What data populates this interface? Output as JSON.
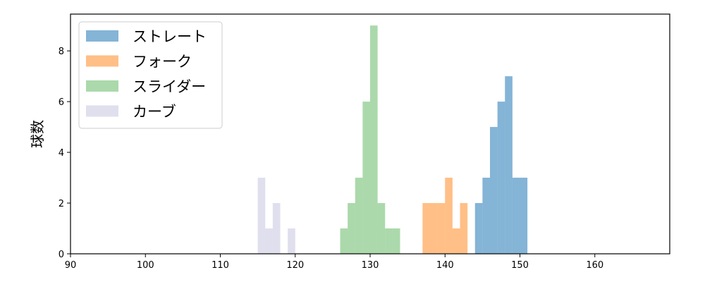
{
  "chart_data": {
    "type": "histogram",
    "xlabel": "",
    "ylabel": "球数",
    "xlim": [
      90,
      170
    ],
    "ylim": [
      0,
      9.45
    ],
    "xticks": [
      90,
      100,
      110,
      120,
      130,
      140,
      150,
      160
    ],
    "yticks": [
      0,
      2,
      4,
      6,
      8
    ],
    "legend_position": "upper-left",
    "grid": false,
    "series": [
      {
        "name": "ストレート",
        "color": "#1f77b4",
        "opacity": 0.55,
        "bins": [
          {
            "x0": 144.0,
            "x1": 145.0,
            "count": 2
          },
          {
            "x0": 145.0,
            "x1": 146.0,
            "count": 3
          },
          {
            "x0": 146.0,
            "x1": 147.0,
            "count": 5
          },
          {
            "x0": 147.0,
            "x1": 148.0,
            "count": 6
          },
          {
            "x0": 148.0,
            "x1": 149.0,
            "count": 7
          },
          {
            "x0": 149.0,
            "x1": 150.0,
            "count": 3
          },
          {
            "x0": 150.0,
            "x1": 151.0,
            "count": 3
          }
        ]
      },
      {
        "name": "フォーク",
        "color": "#ff7f0e",
        "opacity": 0.5,
        "bins": [
          {
            "x0": 137.0,
            "x1": 138.0,
            "count": 2
          },
          {
            "x0": 138.0,
            "x1": 139.0,
            "count": 2
          },
          {
            "x0": 139.0,
            "x1": 140.0,
            "count": 2
          },
          {
            "x0": 140.0,
            "x1": 141.0,
            "count": 3
          },
          {
            "x0": 141.0,
            "x1": 142.0,
            "count": 1
          },
          {
            "x0": 142.0,
            "x1": 143.0,
            "count": 2
          }
        ]
      },
      {
        "name": "スライダー",
        "color": "#2ca02c",
        "opacity": 0.4,
        "bins": [
          {
            "x0": 126.0,
            "x1": 127.0,
            "count": 1
          },
          {
            "x0": 127.0,
            "x1": 128.0,
            "count": 2
          },
          {
            "x0": 128.0,
            "x1": 129.0,
            "count": 3
          },
          {
            "x0": 129.0,
            "x1": 130.0,
            "count": 6
          },
          {
            "x0": 130.0,
            "x1": 131.0,
            "count": 9
          },
          {
            "x0": 131.0,
            "x1": 132.0,
            "count": 2
          },
          {
            "x0": 132.0,
            "x1": 133.0,
            "count": 1
          },
          {
            "x0": 133.0,
            "x1": 134.0,
            "count": 1
          }
        ]
      },
      {
        "name": "カーブ",
        "color": "#b7b7d9",
        "opacity": 0.45,
        "bins": [
          {
            "x0": 115.0,
            "x1": 116.0,
            "count": 3
          },
          {
            "x0": 116.0,
            "x1": 117.0,
            "count": 1
          },
          {
            "x0": 117.0,
            "x1": 118.0,
            "count": 2
          },
          {
            "x0": 119.0,
            "x1": 120.0,
            "count": 1
          }
        ]
      }
    ]
  }
}
